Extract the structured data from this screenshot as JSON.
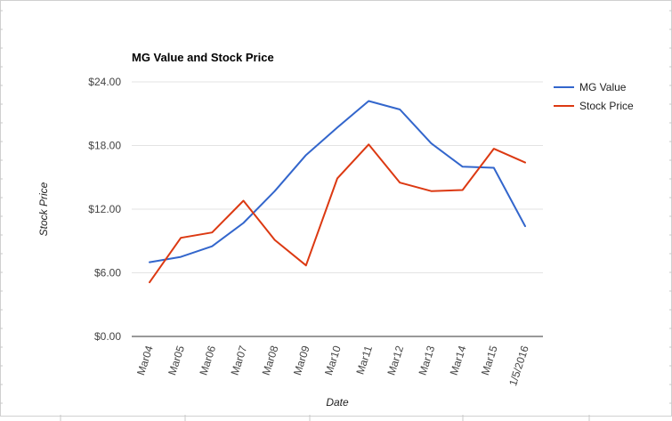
{
  "chart_data": {
    "type": "line",
    "title": "MG Value and Stock Price",
    "xlabel": "Date",
    "ylabel": "Stock Price",
    "categories": [
      "Mar04",
      "Mar05",
      "Mar06",
      "Mar07",
      "Mar08",
      "Mar09",
      "Mar10",
      "Mar11",
      "Mar12",
      "Mar13",
      "Mar14",
      "Mar15",
      "1/5/2016"
    ],
    "yticks": [
      "$0.00",
      "$6.00",
      "$12.00",
      "$18.00",
      "$24.00"
    ],
    "ylim": [
      0,
      24
    ],
    "grid": true,
    "legend_position": "right",
    "series": [
      {
        "name": "MG Value",
        "color": "#3366cc",
        "values": [
          7.0,
          7.5,
          8.5,
          10.7,
          13.7,
          17.1,
          19.7,
          22.2,
          21.4,
          18.2,
          16.0,
          15.9,
          10.4
        ]
      },
      {
        "name": "Stock Price",
        "color": "#dc3912",
        "values": [
          5.1,
          9.3,
          9.8,
          12.8,
          9.1,
          6.7,
          14.9,
          18.1,
          14.5,
          13.7,
          13.8,
          17.7,
          16.4
        ]
      }
    ]
  }
}
